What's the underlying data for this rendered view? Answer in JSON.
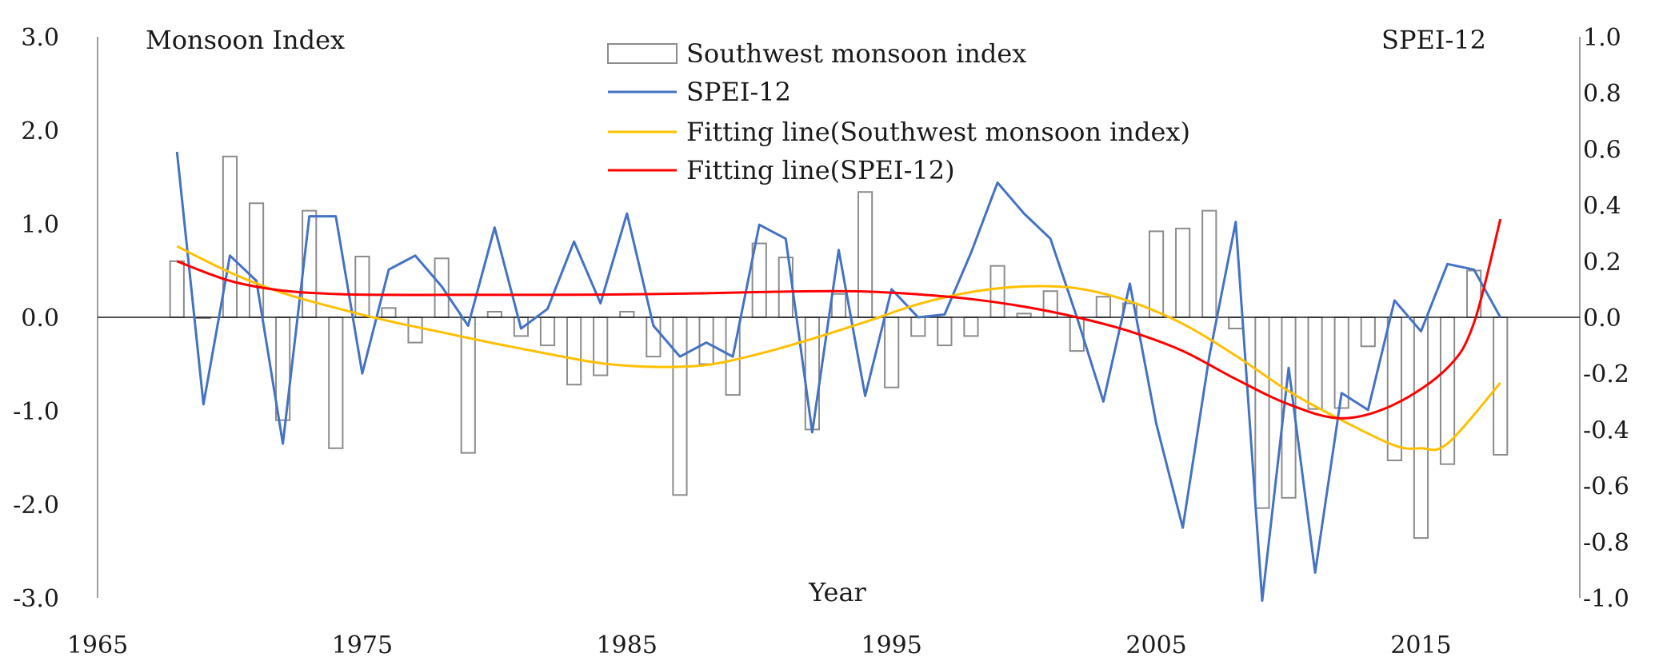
{
  "chart_data": {
    "type": "bar+line",
    "left_axis_title": "Monsoon Index",
    "right_axis_title": "SPEI-12",
    "xlabel": "Year",
    "xlim": [
      1965,
      2021
    ],
    "x_ticks": [
      1965,
      1975,
      1985,
      1995,
      2005,
      2015
    ],
    "ylim_left": [
      -3.0,
      3.0
    ],
    "y_ticks_left": [
      "3.0",
      "2.0",
      "1.0",
      "0.0",
      "-1.0",
      "-2.0",
      "-3.0"
    ],
    "ylim_right": [
      -1.0,
      1.0
    ],
    "y_ticks_right": [
      "1.0",
      "0.8",
      "0.6",
      "0.4",
      "0.2",
      "0.0",
      "-0.2",
      "-0.4",
      "-0.6",
      "-0.8",
      "-1.0"
    ],
    "legend": {
      "placement": "top-center",
      "entries": [
        {
          "label": "Southwest monsoon index",
          "kind": "bar",
          "color": "#8c8c8c"
        },
        {
          "label": "SPEI-12",
          "kind": "line",
          "color": "#4472c4"
        },
        {
          "label": "Fitting line(Southwest monsoon index)",
          "kind": "line",
          "color": "#ffc000"
        },
        {
          "label": "Fitting line(SPEI-12)",
          "kind": "line",
          "color": "#ff0000"
        }
      ]
    },
    "years": [
      1968,
      1969,
      1970,
      1971,
      1972,
      1973,
      1974,
      1975,
      1976,
      1977,
      1978,
      1979,
      1980,
      1981,
      1982,
      1983,
      1984,
      1985,
      1986,
      1987,
      1988,
      1989,
      1990,
      1991,
      1992,
      1993,
      1994,
      1995,
      1996,
      1997,
      1998,
      1999,
      2000,
      2001,
      2002,
      2003,
      2004,
      2005,
      2006,
      2007,
      2008,
      2009,
      2010,
      2011,
      2012,
      2013,
      2014,
      2015,
      2016,
      2017,
      2018
    ],
    "series": [
      {
        "name": "Southwest monsoon index",
        "axis": "left",
        "type": "bar",
        "color": "#8c8c8c",
        "values": [
          0.6,
          0.0,
          1.72,
          1.22,
          -1.1,
          1.14,
          -1.4,
          0.65,
          0.1,
          -0.27,
          0.63,
          -1.45,
          0.06,
          -0.2,
          -0.3,
          -0.72,
          -0.62,
          0.06,
          -0.42,
          -1.9,
          -0.5,
          -0.83,
          0.79,
          0.64,
          -1.2,
          0.25,
          1.34,
          -0.75,
          -0.2,
          -0.3,
          -0.2,
          0.55,
          0.04,
          0.28,
          -0.36,
          0.22,
          0.15,
          0.92,
          0.95,
          1.14,
          -0.12,
          -2.04,
          -1.93,
          -0.98,
          -0.97,
          -0.31,
          -1.53,
          -2.36,
          -1.57,
          0.5,
          -1.47
        ]
      },
      {
        "name": "SPEI-12",
        "axis": "right",
        "type": "line",
        "color": "#4472c4",
        "values": [
          0.59,
          -0.31,
          0.22,
          0.13,
          -0.45,
          0.36,
          0.36,
          -0.2,
          0.17,
          0.22,
          0.11,
          -0.03,
          0.32,
          -0.04,
          0.03,
          0.27,
          0.05,
          0.37,
          -0.03,
          -0.14,
          -0.09,
          -0.14,
          0.33,
          0.28,
          -0.41,
          0.24,
          -0.28,
          0.1,
          0.0,
          0.01,
          0.23,
          0.48,
          0.37,
          0.28,
          0.0,
          -0.3,
          0.12,
          -0.38,
          -0.75,
          -0.14,
          0.34,
          -1.01,
          -0.18,
          -0.91,
          -0.27,
          -0.33,
          0.06,
          -0.05,
          0.19,
          0.17,
          0.0
        ]
      },
      {
        "name": "Fitting line(Southwest monsoon index)",
        "axis": "left",
        "type": "line",
        "color": "#ffc000",
        "x": [
          1968,
          1970,
          1972,
          1974,
          1976,
          1978,
          1980,
          1982,
          1984,
          1986,
          1988,
          1990,
          1992,
          1994,
          1996,
          1998,
          2000,
          2002,
          2004,
          2006,
          2008,
          2010,
          2012,
          2014,
          2015,
          2016,
          2018
        ],
        "values": [
          0.76,
          0.48,
          0.26,
          0.1,
          -0.04,
          -0.16,
          -0.28,
          -0.39,
          -0.49,
          -0.53,
          -0.51,
          -0.39,
          -0.23,
          -0.05,
          0.14,
          0.27,
          0.33,
          0.31,
          0.17,
          -0.07,
          -0.41,
          -0.79,
          -1.1,
          -1.37,
          -1.4,
          -1.35,
          -0.7
        ]
      },
      {
        "name": "Fitting line(SPEI-12)",
        "axis": "right",
        "type": "line",
        "color": "#ff0000",
        "x": [
          1968,
          1970,
          1972,
          1974,
          1976,
          1978,
          1980,
          1982,
          1984,
          1986,
          1988,
          1990,
          1992,
          1994,
          1996,
          1998,
          2000,
          2002,
          2004,
          2006,
          2008,
          2010,
          2012,
          2014,
          2016,
          2017,
          2018
        ],
        "values": [
          0.2,
          0.13,
          0.095,
          0.083,
          0.08,
          0.08,
          0.08,
          0.08,
          0.081,
          0.083,
          0.086,
          0.09,
          0.093,
          0.092,
          0.082,
          0.065,
          0.038,
          0.0,
          -0.05,
          -0.12,
          -0.22,
          -0.31,
          -0.36,
          -0.31,
          -0.18,
          -0.02,
          0.35
        ]
      }
    ]
  }
}
